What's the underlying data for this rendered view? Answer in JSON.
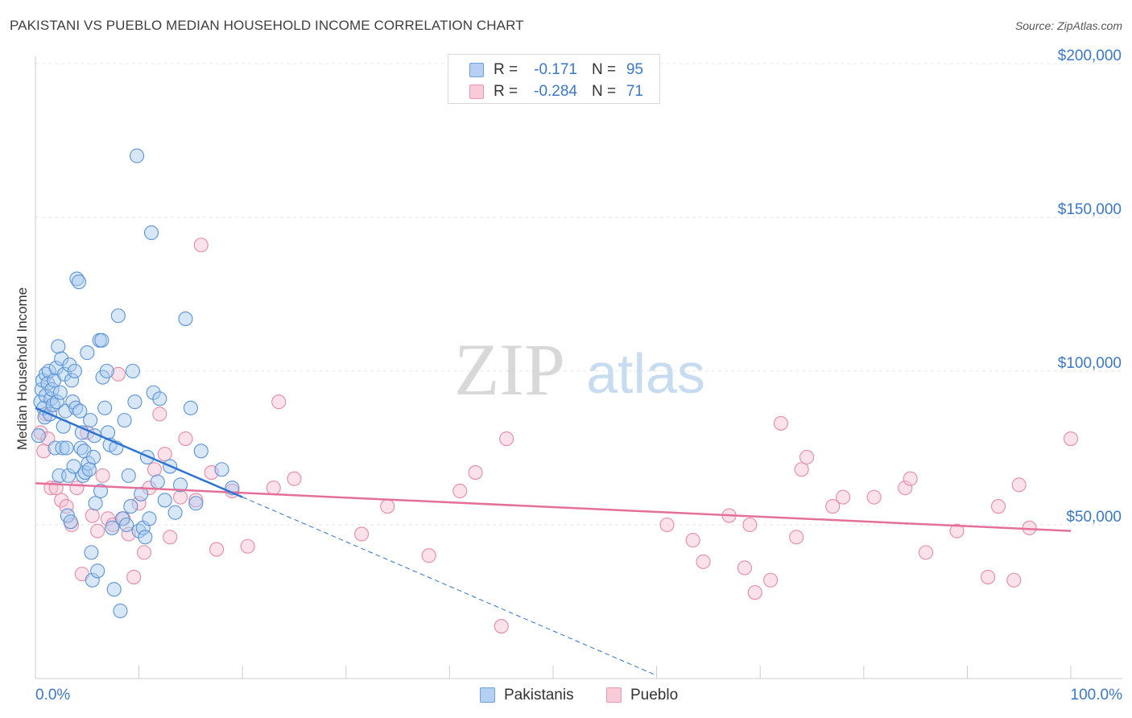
{
  "title": "PAKISTANI VS PUEBLO MEDIAN HOUSEHOLD INCOME CORRELATION CHART",
  "source": "Source: ZipAtlas.com",
  "watermark": {
    "zip": "ZIP",
    "atlas": "atlas"
  },
  "legend": {
    "rows": [
      {
        "r_label": "R =",
        "r_value": "-0.171",
        "n_label": "N =",
        "n_value": "95"
      },
      {
        "r_label": "R =",
        "r_value": "-0.284",
        "n_label": "N =",
        "n_value": "71"
      }
    ]
  },
  "bottom_legend": {
    "items": [
      "Pakistanis",
      "Pueblo"
    ]
  },
  "colors": {
    "blue_fill": "#a9c9f0",
    "blue_stroke": "#5b93d6",
    "blue_line": "#2f74d0",
    "pink_fill": "#f7bfd0",
    "pink_stroke": "#e58aa8",
    "pink_line": "#e4709a",
    "tick_label": "#3a78c9",
    "grid": "#e3e3e3"
  },
  "chart_data": {
    "type": "scatter",
    "title": "PAKISTANI VS PUEBLO MEDIAN HOUSEHOLD INCOME CORRELATION CHART",
    "xlabel": "",
    "ylabel": "Median Household Income",
    "xlim": [
      0,
      100
    ],
    "ylim": [
      0,
      205000
    ],
    "x_tick_labels": [
      "0.0%",
      "100.0%"
    ],
    "y_ticks": [
      50000,
      100000,
      150000,
      200000
    ],
    "y_tick_labels": [
      "$50,000",
      "$100,000",
      "$150,000",
      "$200,000"
    ],
    "grid": true,
    "series": [
      {
        "name": "Pakistanis",
        "color": "blue",
        "trend": {
          "x": [
            0,
            20
          ],
          "y": [
            88000,
            59000
          ],
          "dashed_extension": {
            "x": [
              20,
              60
            ],
            "y": [
              59000,
              1000
            ]
          }
        },
        "points": [
          [
            0.3,
            79000
          ],
          [
            0.5,
            90000
          ],
          [
            0.6,
            94000
          ],
          [
            0.7,
            97000
          ],
          [
            0.8,
            88000
          ],
          [
            0.9,
            85000
          ],
          [
            1.0,
            99000
          ],
          [
            1.0,
            92000
          ],
          [
            1.2,
            96000
          ],
          [
            1.3,
            100000
          ],
          [
            1.4,
            86000
          ],
          [
            1.5,
            91000
          ],
          [
            1.6,
            94000
          ],
          [
            1.7,
            89000
          ],
          [
            1.8,
            97000
          ],
          [
            1.9,
            75000
          ],
          [
            2.0,
            101000
          ],
          [
            2.1,
            90000
          ],
          [
            2.2,
            108000
          ],
          [
            2.3,
            66000
          ],
          [
            2.4,
            93000
          ],
          [
            2.5,
            104000
          ],
          [
            2.6,
            75000
          ],
          [
            2.7,
            82000
          ],
          [
            2.8,
            99000
          ],
          [
            2.9,
            87000
          ],
          [
            3.0,
            75000
          ],
          [
            3.1,
            53000
          ],
          [
            3.2,
            66000
          ],
          [
            3.3,
            102000
          ],
          [
            3.4,
            51000
          ],
          [
            3.5,
            97000
          ],
          [
            3.6,
            90000
          ],
          [
            3.7,
            69000
          ],
          [
            3.8,
            100000
          ],
          [
            3.9,
            88000
          ],
          [
            4.0,
            130000
          ],
          [
            4.2,
            129000
          ],
          [
            4.3,
            87000
          ],
          [
            4.4,
            75000
          ],
          [
            4.5,
            80000
          ],
          [
            4.6,
            66000
          ],
          [
            4.7,
            74000
          ],
          [
            4.8,
            67000
          ],
          [
            5.0,
            106000
          ],
          [
            5.1,
            70000
          ],
          [
            5.2,
            68000
          ],
          [
            5.3,
            84000
          ],
          [
            5.4,
            41000
          ],
          [
            5.5,
            32000
          ],
          [
            5.6,
            72000
          ],
          [
            5.7,
            79000
          ],
          [
            5.8,
            57000
          ],
          [
            6.0,
            35000
          ],
          [
            6.2,
            110000
          ],
          [
            6.3,
            61000
          ],
          [
            6.4,
            110000
          ],
          [
            6.5,
            98000
          ],
          [
            6.7,
            88000
          ],
          [
            6.9,
            100000
          ],
          [
            7.0,
            80000
          ],
          [
            7.2,
            76000
          ],
          [
            7.4,
            49000
          ],
          [
            7.6,
            29000
          ],
          [
            7.8,
            75000
          ],
          [
            8.0,
            118000
          ],
          [
            8.2,
            22000
          ],
          [
            8.4,
            52000
          ],
          [
            8.6,
            84000
          ],
          [
            8.8,
            50000
          ],
          [
            9.0,
            66000
          ],
          [
            9.2,
            56000
          ],
          [
            9.4,
            100000
          ],
          [
            9.6,
            90000
          ],
          [
            9.8,
            170000
          ],
          [
            10.0,
            48000
          ],
          [
            10.2,
            60000
          ],
          [
            10.4,
            49000
          ],
          [
            10.6,
            46000
          ],
          [
            10.8,
            72000
          ],
          [
            11.0,
            52000
          ],
          [
            11.2,
            145000
          ],
          [
            11.4,
            93000
          ],
          [
            11.8,
            64000
          ],
          [
            12.0,
            91000
          ],
          [
            12.5,
            58000
          ],
          [
            13.0,
            69000
          ],
          [
            13.5,
            54000
          ],
          [
            14.0,
            63000
          ],
          [
            14.5,
            117000
          ],
          [
            15.0,
            88000
          ],
          [
            15.5,
            57000
          ],
          [
            16.0,
            74000
          ],
          [
            18.0,
            68000
          ],
          [
            19.0,
            62000
          ]
        ]
      },
      {
        "name": "Pueblo",
        "color": "pink",
        "trend": {
          "x": [
            0,
            100
          ],
          "y": [
            63500,
            48000
          ]
        },
        "points": [
          [
            0.5,
            80000
          ],
          [
            0.8,
            74000
          ],
          [
            1.0,
            86000
          ],
          [
            1.2,
            78000
          ],
          [
            1.5,
            62000
          ],
          [
            2.0,
            62000
          ],
          [
            2.5,
            58000
          ],
          [
            3.0,
            56000
          ],
          [
            3.5,
            50000
          ],
          [
            4.0,
            62000
          ],
          [
            4.5,
            34000
          ],
          [
            5.0,
            80000
          ],
          [
            5.5,
            53000
          ],
          [
            6.0,
            48000
          ],
          [
            6.5,
            66000
          ],
          [
            7.0,
            52000
          ],
          [
            7.5,
            50000
          ],
          [
            8.0,
            99000
          ],
          [
            8.5,
            52000
          ],
          [
            9.0,
            47000
          ],
          [
            9.5,
            33000
          ],
          [
            10.0,
            57000
          ],
          [
            10.5,
            41000
          ],
          [
            11.0,
            62000
          ],
          [
            11.5,
            68000
          ],
          [
            12.0,
            86000
          ],
          [
            12.5,
            73000
          ],
          [
            13.0,
            46000
          ],
          [
            14.0,
            59000
          ],
          [
            14.5,
            78000
          ],
          [
            15.5,
            58000
          ],
          [
            16.0,
            141000
          ],
          [
            17.0,
            67000
          ],
          [
            17.5,
            42000
          ],
          [
            19.0,
            61000
          ],
          [
            20.5,
            43000
          ],
          [
            23.0,
            62000
          ],
          [
            23.5,
            90000
          ],
          [
            25.0,
            65000
          ],
          [
            31.5,
            47000
          ],
          [
            34.0,
            56000
          ],
          [
            38.0,
            40000
          ],
          [
            41.0,
            61000
          ],
          [
            42.5,
            67000
          ],
          [
            45.0,
            17000
          ],
          [
            45.5,
            78000
          ],
          [
            61.0,
            50000
          ],
          [
            63.5,
            45000
          ],
          [
            64.5,
            38000
          ],
          [
            67.0,
            53000
          ],
          [
            68.5,
            36000
          ],
          [
            69.0,
            50000
          ],
          [
            69.5,
            28000
          ],
          [
            71.0,
            32000
          ],
          [
            72.0,
            83000
          ],
          [
            73.5,
            46000
          ],
          [
            74.0,
            68000
          ],
          [
            74.5,
            72000
          ],
          [
            77.0,
            56000
          ],
          [
            78.0,
            59000
          ],
          [
            81.0,
            59000
          ],
          [
            84.0,
            62000
          ],
          [
            84.5,
            65000
          ],
          [
            86.0,
            41000
          ],
          [
            89.0,
            48000
          ],
          [
            92.0,
            33000
          ],
          [
            93.0,
            56000
          ],
          [
            94.5,
            32000
          ],
          [
            95.0,
            63000
          ],
          [
            96.0,
            49000
          ],
          [
            100.0,
            78000
          ]
        ]
      }
    ]
  }
}
